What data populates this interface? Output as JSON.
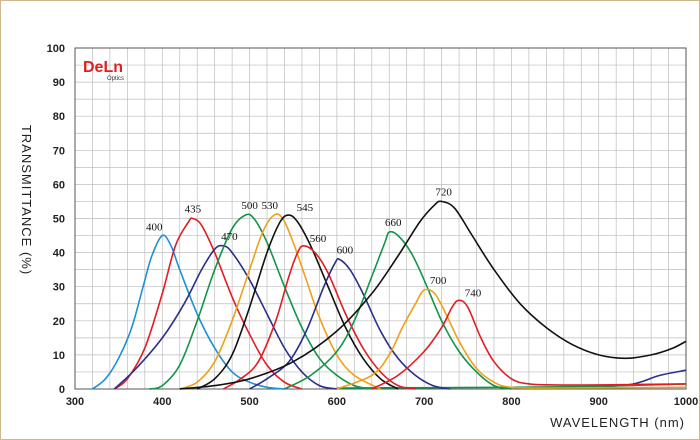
{
  "logo": {
    "brand": "DeLn",
    "sub": "Optics"
  },
  "chart_data": {
    "type": "line",
    "xlabel": "WAVELENGTH (nm)",
    "ylabel": "TRANSMITTANCE (%)",
    "xlim": [
      300,
      1000
    ],
    "ylim": [
      0,
      100
    ],
    "xticks": [
      300,
      400,
      500,
      600,
      700,
      800,
      900,
      1000
    ],
    "yticks": [
      0,
      10,
      20,
      30,
      40,
      50,
      60,
      70,
      80,
      90,
      100
    ],
    "grid": true,
    "series": [
      {
        "name": "400",
        "color": "#1e8fd6",
        "peak": [
          400,
          45
        ],
        "points": [
          [
            320,
            0
          ],
          [
            335,
            3
          ],
          [
            350,
            9
          ],
          [
            365,
            18
          ],
          [
            378,
            30
          ],
          [
            388,
            39
          ],
          [
            400,
            45
          ],
          [
            410,
            42
          ],
          [
            420,
            35
          ],
          [
            440,
            22
          ],
          [
            460,
            12
          ],
          [
            480,
            5
          ],
          [
            500,
            2
          ],
          [
            520,
            0.5
          ],
          [
            540,
            0
          ]
        ]
      },
      {
        "name": "435",
        "color": "#e21c24",
        "peak": [
          435,
          50
        ],
        "points": [
          [
            345,
            0
          ],
          [
            360,
            3
          ],
          [
            380,
            12
          ],
          [
            400,
            28
          ],
          [
            415,
            42
          ],
          [
            430,
            49
          ],
          [
            435,
            50
          ],
          [
            445,
            48
          ],
          [
            460,
            40
          ],
          [
            480,
            27
          ],
          [
            500,
            16
          ],
          [
            520,
            7
          ],
          [
            540,
            2
          ],
          [
            560,
            0
          ]
        ]
      },
      {
        "name": "470",
        "color": "#2b2f86",
        "peak": [
          470,
          42
        ],
        "points": [
          [
            345,
            0
          ],
          [
            370,
            6
          ],
          [
            400,
            15
          ],
          [
            425,
            25
          ],
          [
            445,
            35
          ],
          [
            460,
            41
          ],
          [
            470,
            42
          ],
          [
            480,
            40
          ],
          [
            500,
            32
          ],
          [
            520,
            22
          ],
          [
            540,
            12
          ],
          [
            560,
            5
          ],
          [
            580,
            1
          ],
          [
            600,
            0
          ]
        ]
      },
      {
        "name": "500",
        "color": "#12944a",
        "peak": [
          500,
          51
        ],
        "points": [
          [
            385,
            0
          ],
          [
            400,
            1
          ],
          [
            420,
            7
          ],
          [
            440,
            20
          ],
          [
            460,
            35
          ],
          [
            480,
            47
          ],
          [
            495,
            51
          ],
          [
            505,
            50
          ],
          [
            520,
            43
          ],
          [
            540,
            30
          ],
          [
            560,
            18
          ],
          [
            580,
            9
          ],
          [
            600,
            4
          ],
          [
            620,
            1
          ],
          [
            640,
            0
          ]
        ]
      },
      {
        "name": "530",
        "color": "#f0a018",
        "peak": [
          530,
          51
        ],
        "points": [
          [
            420,
            0
          ],
          [
            440,
            2
          ],
          [
            460,
            8
          ],
          [
            480,
            20
          ],
          [
            500,
            35
          ],
          [
            515,
            46
          ],
          [
            528,
            51
          ],
          [
            538,
            50
          ],
          [
            550,
            43
          ],
          [
            565,
            32
          ],
          [
            580,
            21
          ],
          [
            600,
            10
          ],
          [
            620,
            4
          ],
          [
            650,
            0
          ]
        ]
      },
      {
        "name": "545",
        "color": "#111111",
        "peak": [
          545,
          51
        ],
        "points": [
          [
            440,
            0
          ],
          [
            460,
            3
          ],
          [
            480,
            10
          ],
          [
            500,
            24
          ],
          [
            520,
            40
          ],
          [
            535,
            49
          ],
          [
            545,
            51
          ],
          [
            555,
            49
          ],
          [
            570,
            42
          ],
          [
            590,
            30
          ],
          [
            610,
            18
          ],
          [
            630,
            9
          ],
          [
            650,
            3
          ],
          [
            670,
            0
          ]
        ]
      },
      {
        "name": "560",
        "color": "#e21c24",
        "peak": [
          560,
          42
        ],
        "points": [
          [
            470,
            0
          ],
          [
            490,
            3
          ],
          [
            510,
            8
          ],
          [
            530,
            20
          ],
          [
            545,
            33
          ],
          [
            555,
            40
          ],
          [
            562,
            42
          ],
          [
            575,
            40
          ],
          [
            590,
            34
          ],
          [
            610,
            22
          ],
          [
            630,
            12
          ],
          [
            650,
            5
          ],
          [
            670,
            1
          ],
          [
            690,
            0
          ]
        ]
      },
      {
        "name": "600",
        "color": "#2b2f86",
        "peak": [
          600,
          38
        ],
        "points": [
          [
            500,
            0
          ],
          [
            520,
            3
          ],
          [
            545,
            8
          ],
          [
            565,
            17
          ],
          [
            585,
            30
          ],
          [
            598,
            37
          ],
          [
            603,
            38
          ],
          [
            615,
            35
          ],
          [
            630,
            28
          ],
          [
            650,
            17
          ],
          [
            670,
            9
          ],
          [
            690,
            4
          ],
          [
            710,
            1
          ],
          [
            730,
            0
          ]
        ]
      },
      {
        "name": "660",
        "color": "#12944a",
        "peak": [
          660,
          46
        ],
        "points": [
          [
            540,
            0
          ],
          [
            570,
            4
          ],
          [
            600,
            11
          ],
          [
            620,
            20
          ],
          [
            640,
            33
          ],
          [
            655,
            43
          ],
          [
            660,
            46
          ],
          [
            670,
            45
          ],
          [
            685,
            40
          ],
          [
            700,
            32
          ],
          [
            720,
            20
          ],
          [
            740,
            11
          ],
          [
            760,
            5
          ],
          [
            780,
            1
          ],
          [
            800,
            0
          ]
        ]
      },
      {
        "name": "720",
        "color": "#111111",
        "peak": [
          720,
          55
        ],
        "points": [
          [
            420,
            0
          ],
          [
            460,
            1
          ],
          [
            500,
            3
          ],
          [
            550,
            8
          ],
          [
            600,
            17
          ],
          [
            640,
            28
          ],
          [
            670,
            39
          ],
          [
            695,
            49
          ],
          [
            712,
            54
          ],
          [
            720,
            55
          ],
          [
            735,
            53
          ],
          [
            755,
            45
          ],
          [
            780,
            35
          ],
          [
            810,
            25
          ],
          [
            840,
            18
          ],
          [
            870,
            13
          ],
          [
            900,
            10
          ],
          [
            930,
            9
          ],
          [
            960,
            10
          ],
          [
            985,
            12
          ],
          [
            1000,
            14
          ]
        ]
      },
      {
        "name": "700",
        "color": "#f0a018",
        "peak": [
          700,
          29
        ],
        "points": [
          [
            600,
            0
          ],
          [
            640,
            4
          ],
          [
            660,
            10
          ],
          [
            675,
            18
          ],
          [
            690,
            25
          ],
          [
            700,
            29
          ],
          [
            712,
            28
          ],
          [
            725,
            22
          ],
          [
            740,
            14
          ],
          [
            760,
            6
          ],
          [
            780,
            2
          ],
          [
            800,
            0.5
          ],
          [
            850,
            0.3
          ],
          [
            1000,
            0.5
          ]
        ]
      },
      {
        "name": "740",
        "color": "#e21c24",
        "peak": [
          740,
          26
        ],
        "points": [
          [
            640,
            0
          ],
          [
            670,
            4
          ],
          [
            700,
            11
          ],
          [
            720,
            18
          ],
          [
            732,
            24
          ],
          [
            740,
            26
          ],
          [
            750,
            24
          ],
          [
            765,
            15
          ],
          [
            780,
            8
          ],
          [
            800,
            3
          ],
          [
            820,
            1.5
          ],
          [
            850,
            1.2
          ],
          [
            900,
            1.2
          ],
          [
            1000,
            1.5
          ]
        ]
      }
    ],
    "tails": [
      {
        "color": "#2b2f86",
        "points": [
          [
            900,
            0.5
          ],
          [
            940,
            1.5
          ],
          [
            970,
            4
          ],
          [
            1000,
            5.5
          ]
        ]
      },
      {
        "color": "#12944a",
        "points": [
          [
            600,
            0.3
          ],
          [
            800,
            0.5
          ],
          [
            900,
            0.8
          ],
          [
            1000,
            1.5
          ]
        ]
      }
    ]
  }
}
